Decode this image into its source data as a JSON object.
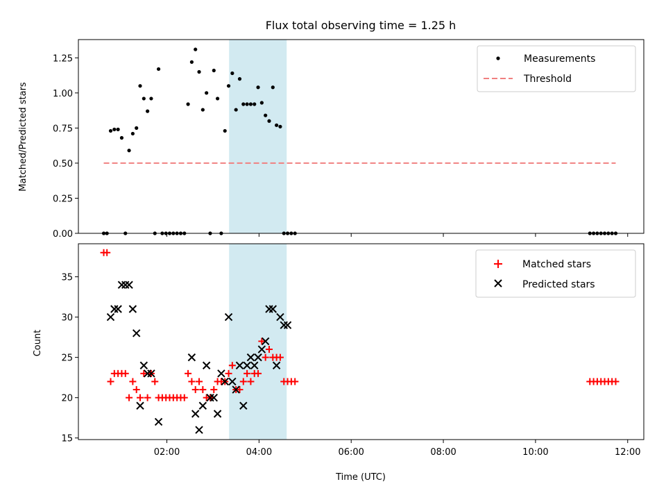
{
  "chart_data": [
    {
      "type": "scatter",
      "title": "Flux total observing time = 1.25 h",
      "xlabel": "",
      "ylabel": "Matched/Predicted stars",
      "xlim": [
        0.08,
        12.35
      ],
      "ylim": [
        0.0,
        1.38
      ],
      "yticks": [
        0.0,
        0.25,
        0.5,
        0.75,
        1.0,
        1.25
      ],
      "ytick_labels": [
        "0.00",
        "0.25",
        "0.50",
        "0.75",
        "1.00",
        "1.25"
      ],
      "xticks": [
        2,
        4,
        6,
        8,
        10,
        12
      ],
      "grid": false,
      "legend_position": "top-right",
      "shaded_band": [
        3.35,
        4.6
      ],
      "band_color": "#add8e6",
      "series": [
        {
          "name": "Measurements",
          "marker": "dot",
          "color": "#000000",
          "x": [
            0.63,
            0.7,
            0.78,
            0.86,
            0.94,
            1.02,
            1.1,
            1.18,
            1.26,
            1.34,
            1.42,
            1.5,
            1.58,
            1.66,
            1.74,
            1.82,
            1.9,
            1.98,
            2.06,
            2.14,
            2.22,
            2.3,
            2.38,
            2.46,
            2.54,
            2.62,
            2.7,
            2.78,
            2.86,
            2.94,
            3.02,
            3.1,
            3.18,
            3.26,
            3.34,
            3.42,
            3.5,
            3.58,
            3.66,
            3.74,
            3.82,
            3.9,
            3.98,
            4.06,
            4.14,
            4.22,
            4.3,
            4.38,
            4.46,
            4.54,
            4.62,
            4.7,
            4.78,
            11.18,
            11.26,
            11.34,
            11.42,
            11.5,
            11.58,
            11.66,
            11.74
          ],
          "y": [
            0.0,
            0.0,
            0.73,
            0.74,
            0.74,
            0.68,
            0.0,
            0.59,
            0.71,
            0.75,
            1.05,
            0.96,
            0.87,
            0.96,
            0.0,
            1.17,
            0.0,
            0.0,
            0.0,
            0.0,
            0.0,
            0.0,
            0.0,
            0.92,
            1.22,
            1.31,
            1.15,
            0.88,
            1.0,
            0.0,
            1.16,
            0.96,
            0.0,
            0.73,
            1.05,
            1.14,
            0.88,
            1.1,
            0.92,
            0.92,
            0.92,
            0.92,
            1.04,
            0.93,
            0.84,
            0.8,
            1.04,
            0.77,
            0.76,
            0.0,
            0.0,
            0.0,
            0.0,
            0.0,
            0.0,
            0.0,
            0.0,
            0.0,
            0.0,
            0.0,
            0.0
          ]
        },
        {
          "name": "Threshold",
          "marker": "dashed-line",
          "color": "#f08080",
          "x": [
            0.63,
            11.74
          ],
          "y": [
            0.5,
            0.5
          ]
        }
      ]
    },
    {
      "type": "scatter",
      "title": "",
      "xlabel": "Time (UTC)",
      "ylabel": "Count",
      "xlim": [
        0.08,
        12.35
      ],
      "ylim": [
        14.8,
        39.1
      ],
      "yticks": [
        15,
        20,
        25,
        30,
        35
      ],
      "ytick_labels": [
        "15",
        "20",
        "25",
        "30",
        "35"
      ],
      "xticks": [
        2,
        4,
        6,
        8,
        10,
        12
      ],
      "xtick_labels": [
        "02:00",
        "04:00",
        "06:00",
        "08:00",
        "10:00",
        "12:00"
      ],
      "grid": false,
      "legend_position": "top-right",
      "shaded_band": [
        3.35,
        4.6
      ],
      "band_color": "#add8e6",
      "series": [
        {
          "name": "Matched stars",
          "marker": "plus",
          "color": "#ff0000",
          "x": [
            0.63,
            0.7,
            0.78,
            0.86,
            0.94,
            1.02,
            1.1,
            1.18,
            1.26,
            1.34,
            1.42,
            1.5,
            1.58,
            1.66,
            1.74,
            1.82,
            1.9,
            1.98,
            2.06,
            2.14,
            2.22,
            2.3,
            2.38,
            2.46,
            2.54,
            2.62,
            2.7,
            2.78,
            2.86,
            2.94,
            3.02,
            3.1,
            3.18,
            3.26,
            3.34,
            3.42,
            3.5,
            3.58,
            3.66,
            3.74,
            3.82,
            3.9,
            3.98,
            4.06,
            4.14,
            4.22,
            4.3,
            4.38,
            4.46,
            4.54,
            4.62,
            4.7,
            4.78,
            11.18,
            11.26,
            11.34,
            11.42,
            11.5,
            11.58,
            11.66,
            11.74
          ],
          "y": [
            38,
            38,
            22,
            23,
            23,
            23,
            23,
            20,
            22,
            21,
            20,
            23,
            20,
            23,
            22,
            20,
            20,
            20,
            20,
            20,
            20,
            20,
            20,
            23,
            22,
            21,
            22,
            21,
            20,
            20,
            21,
            22,
            22,
            22,
            23,
            24,
            21,
            21,
            22,
            23,
            22,
            23,
            23,
            27,
            25,
            26,
            25,
            25,
            25,
            22,
            22,
            22,
            22,
            22,
            22,
            22,
            22,
            22,
            22,
            22,
            22
          ]
        },
        {
          "name": "Predicted stars",
          "marker": "x",
          "color": "#000000",
          "x": [
            0.78,
            0.86,
            0.94,
            1.02,
            1.1,
            1.18,
            1.26,
            1.34,
            1.42,
            1.5,
            1.58,
            1.66,
            1.82,
            2.54,
            2.62,
            2.7,
            2.78,
            2.86,
            2.94,
            3.02,
            3.1,
            3.18,
            3.26,
            3.34,
            3.42,
            3.5,
            3.58,
            3.66,
            3.74,
            3.82,
            3.9,
            3.98,
            4.06,
            4.14,
            4.22,
            4.3,
            4.38,
            4.46,
            4.54,
            4.62
          ],
          "y": [
            30,
            31,
            31,
            34,
            34,
            34,
            31,
            28,
            19,
            24,
            23,
            23,
            17,
            25,
            18,
            16,
            19,
            24,
            20,
            20,
            18,
            23,
            22,
            30,
            22,
            21,
            24,
            19,
            24,
            25,
            24,
            25,
            26,
            27,
            31,
            31,
            24,
            30,
            29,
            29
          ]
        }
      ]
    }
  ]
}
